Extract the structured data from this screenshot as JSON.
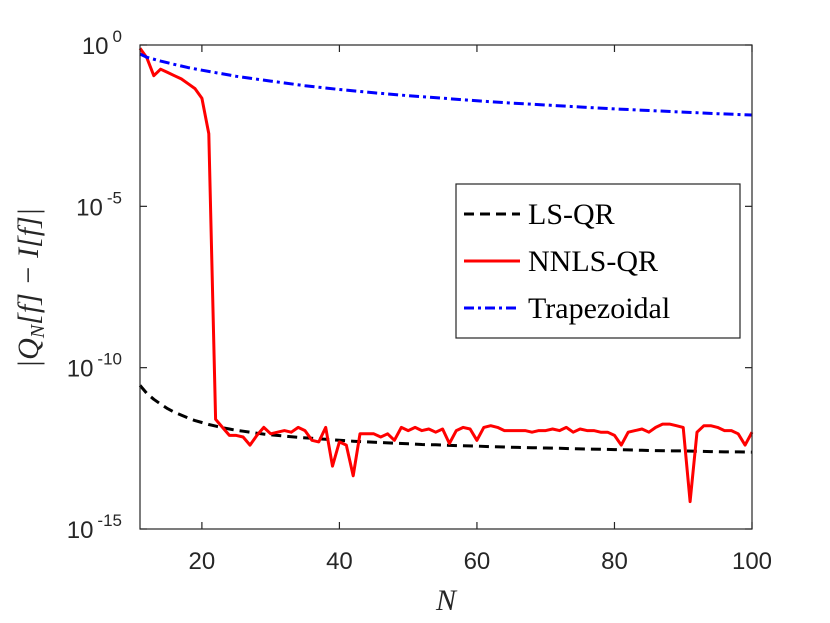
{
  "chart_data": {
    "type": "line",
    "title": "",
    "xlabel": "N",
    "ylabel": "|Q_N[f] - I[f]|",
    "xscale": "linear",
    "yscale": "log",
    "xlim": [
      11,
      100
    ],
    "ylim_log10": [
      -15,
      0
    ],
    "x_ticks": [
      20,
      40,
      60,
      80,
      100
    ],
    "y_ticks": [
      {
        "base": "10",
        "exp": "0",
        "value_log10": 0
      },
      {
        "base": "10",
        "exp": "-5",
        "value_log10": -5
      },
      {
        "base": "10",
        "exp": "-10",
        "value_log10": -10
      },
      {
        "base": "10",
        "exp": "-15",
        "value_log10": -15
      }
    ],
    "grid": false,
    "legend_position": "center-right",
    "series": [
      {
        "name": "LS-QR",
        "color": "#000000",
        "style": "dashed",
        "x": [
          11,
          12,
          13,
          14,
          15,
          16,
          17,
          18,
          19,
          20,
          21,
          22,
          23,
          24,
          25,
          26,
          27,
          28,
          29,
          30,
          32,
          34,
          36,
          38,
          40,
          42,
          44,
          46,
          48,
          50,
          52,
          54,
          56,
          58,
          60,
          62,
          64,
          66,
          68,
          70,
          72,
          74,
          76,
          78,
          80,
          82,
          84,
          86,
          88,
          90,
          92,
          94,
          96,
          98,
          100
        ],
        "log10_y": [
          -10.55,
          -10.8,
          -10.98,
          -11.13,
          -11.27,
          -11.38,
          -11.47,
          -11.56,
          -11.64,
          -11.7,
          -11.76,
          -11.81,
          -11.86,
          -11.9,
          -11.94,
          -11.97,
          -12.0,
          -12.03,
          -12.06,
          -12.08,
          -12.12,
          -12.16,
          -12.19,
          -12.22,
          -12.25,
          -12.28,
          -12.3,
          -12.32,
          -12.34,
          -12.36,
          -12.38,
          -12.39,
          -12.41,
          -12.42,
          -12.43,
          -12.45,
          -12.46,
          -12.47,
          -12.48,
          -12.49,
          -12.5,
          -12.51,
          -12.52,
          -12.53,
          -12.54,
          -12.55,
          -12.56,
          -12.57,
          -12.58,
          -12.58,
          -12.59,
          -12.6,
          -12.61,
          -12.61,
          -12.62
        ]
      },
      {
        "name": "NNLS-QR",
        "color": "#ff0000",
        "style": "solid",
        "x": [
          11,
          12,
          13,
          14,
          15,
          16,
          17,
          18,
          19,
          20,
          21,
          22,
          23,
          24,
          25,
          26,
          27,
          28,
          29,
          30,
          31,
          32,
          33,
          34,
          35,
          36,
          37,
          38,
          39,
          40,
          41,
          42,
          43,
          44,
          45,
          46,
          47,
          48,
          49,
          50,
          51,
          52,
          53,
          54,
          55,
          56,
          57,
          58,
          59,
          60,
          61,
          62,
          63,
          64,
          65,
          66,
          67,
          68,
          69,
          70,
          71,
          72,
          73,
          74,
          75,
          76,
          77,
          78,
          79,
          80,
          81,
          82,
          83,
          84,
          85,
          86,
          87,
          88,
          89,
          90,
          91,
          92,
          93,
          94,
          95,
          96,
          97,
          98,
          99,
          100
        ],
        "log10_y": [
          -0.1,
          -0.4,
          -0.95,
          -0.75,
          -0.85,
          -0.95,
          -1.05,
          -1.2,
          -1.35,
          -1.65,
          -2.75,
          -11.6,
          -11.85,
          -12.1,
          -12.1,
          -12.15,
          -12.4,
          -12.1,
          -11.85,
          -12.05,
          -12.0,
          -11.95,
          -12.0,
          -11.85,
          -11.95,
          -12.25,
          -12.3,
          -11.85,
          -13.05,
          -12.3,
          -12.4,
          -13.35,
          -12.05,
          -12.05,
          -12.05,
          -12.15,
          -12.05,
          -12.25,
          -11.85,
          -11.95,
          -11.85,
          -11.95,
          -11.9,
          -12.0,
          -11.9,
          -12.35,
          -11.95,
          -11.85,
          -11.9,
          -12.25,
          -11.85,
          -11.8,
          -11.85,
          -11.95,
          -11.95,
          -11.95,
          -11.95,
          -12.0,
          -11.95,
          -11.95,
          -11.9,
          -11.95,
          -11.85,
          -12.0,
          -11.9,
          -11.95,
          -11.95,
          -12.0,
          -12.0,
          -12.1,
          -12.4,
          -12.0,
          -11.95,
          -11.9,
          -12.0,
          -11.85,
          -11.75,
          -11.75,
          -11.8,
          -11.85,
          -14.15,
          -12.0,
          -11.8,
          -11.8,
          -11.85,
          -11.95,
          -11.95,
          -12.05,
          -12.4,
          -12.0
        ]
      },
      {
        "name": "Trapezoidal",
        "color": "#0000ff",
        "style": "dashdot",
        "x": [
          11,
          12,
          14,
          16,
          18,
          20,
          25,
          30,
          35,
          40,
          45,
          50,
          55,
          60,
          65,
          70,
          75,
          80,
          85,
          90,
          95,
          100
        ],
        "log10_y": [
          -0.28,
          -0.38,
          -0.5,
          -0.6,
          -0.7,
          -0.78,
          -0.97,
          -1.12,
          -1.26,
          -1.38,
          -1.48,
          -1.57,
          -1.65,
          -1.73,
          -1.8,
          -1.86,
          -1.92,
          -1.98,
          -2.03,
          -2.08,
          -2.13,
          -2.17
        ]
      }
    ]
  }
}
